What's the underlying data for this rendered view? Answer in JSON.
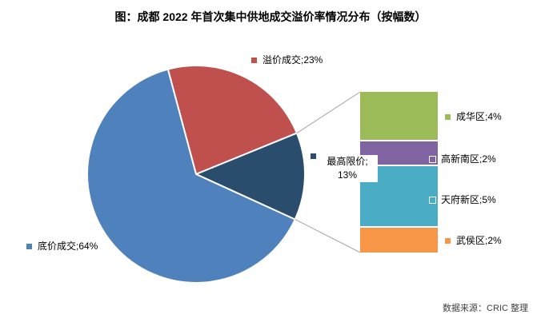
{
  "chart_data": {
    "type": "pie",
    "variant": "bar-of-pie",
    "title": "图：成都 2022 年首次集中供地成交溢价率情况分布（按幅数）",
    "source_note": "数据来源：CRIC 整理",
    "label_format": "name;value%",
    "legend_position": "none",
    "background": "#FFFFFF",
    "connector_color": "#A6A6A6",
    "pie": {
      "start_angle_deg": -15,
      "slices": [
        {
          "name": "溢价成交",
          "value": 23,
          "unit": "%",
          "color": "#C0504D",
          "label_text": "溢价成交;23%"
        },
        {
          "name": "最高限价",
          "value": 13,
          "unit": "%",
          "color": "#2A4D6E",
          "label_text": "最高限价;13%",
          "label_line1": "最高限价;",
          "label_line2": "13%"
        },
        {
          "name": "底价成交",
          "value": 64,
          "unit": "%",
          "color": "#4F81BD",
          "label_text": "底价成交;64%"
        }
      ]
    },
    "breakdown": {
      "parent_slice": "最高限价",
      "segments": [
        {
          "name": "成华区",
          "value": 4,
          "unit": "%",
          "color": "#9BBB59",
          "label_text": "成华区;4%"
        },
        {
          "name": "高新南区",
          "value": 2,
          "unit": "%",
          "color": "#8064A2",
          "label_text": "高新南区;2%"
        },
        {
          "name": "天府新区",
          "value": 5,
          "unit": "%",
          "color": "#4BACC6",
          "label_text": "天府新区;5%"
        },
        {
          "name": "武侯区",
          "value": 2,
          "unit": "%",
          "color": "#F79646",
          "label_text": "武侯区;2%"
        }
      ]
    }
  }
}
